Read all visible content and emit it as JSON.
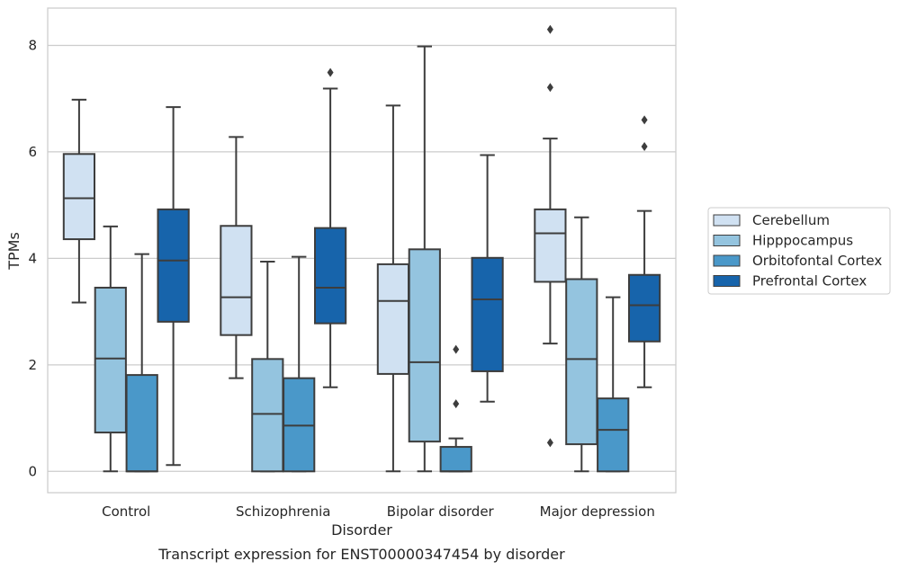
{
  "chart_data": {
    "type": "box",
    "xlabel": "Disorder",
    "ylabel": "TPMs",
    "caption": "Transcript expression for ENST00000347454 by disorder",
    "categories": [
      "Control",
      "Schizophrenia",
      "Bipolar disorder",
      "Major depression"
    ],
    "ylim": [
      -0.4,
      8.7
    ],
    "yticks": [
      0,
      2,
      4,
      6,
      8
    ],
    "grid": true,
    "legend_position": "right",
    "series": [
      {
        "name": "Cerebellum",
        "color": "#d0e1f2",
        "boxes": [
          {
            "min": 3.17,
            "q1": 4.36,
            "median": 5.13,
            "q3": 5.96,
            "max": 6.98,
            "outliers": []
          },
          {
            "min": 1.75,
            "q1": 2.56,
            "median": 3.27,
            "q3": 4.61,
            "max": 6.28,
            "outliers": []
          },
          {
            "min": 0.0,
            "q1": 1.83,
            "median": 3.2,
            "q3": 3.89,
            "max": 6.87,
            "outliers": []
          },
          {
            "min": 2.4,
            "q1": 3.56,
            "median": 4.47,
            "q3": 4.92,
            "max": 6.25,
            "outliers": [
              0.54,
              7.21,
              8.3
            ]
          }
        ]
      },
      {
        "name": "Hipppocampus",
        "color": "#94c4df",
        "boxes": [
          {
            "min": 0.0,
            "q1": 0.73,
            "median": 2.12,
            "q3": 3.45,
            "max": 4.6,
            "outliers": []
          },
          {
            "min": 0.0,
            "q1": 0.0,
            "median": 1.08,
            "q3": 2.11,
            "max": 3.94,
            "outliers": []
          },
          {
            "min": 0.0,
            "q1": 0.56,
            "median": 2.05,
            "q3": 4.17,
            "max": 7.98,
            "outliers": []
          },
          {
            "min": 0.0,
            "q1": 0.51,
            "median": 2.11,
            "q3": 3.61,
            "max": 4.77,
            "outliers": []
          }
        ]
      },
      {
        "name": "Orbitofontal Cortex",
        "color": "#4a98c9",
        "boxes": [
          {
            "min": 0.0,
            "q1": 0.0,
            "median": 0.0,
            "q3": 1.81,
            "max": 4.08,
            "outliers": []
          },
          {
            "min": 0.0,
            "q1": 0.0,
            "median": 0.86,
            "q3": 1.75,
            "max": 4.03,
            "outliers": []
          },
          {
            "min": 0.0,
            "q1": 0.0,
            "median": 0.0,
            "q3": 0.46,
            "max": 0.62,
            "outliers": [
              1.27,
              2.29
            ]
          },
          {
            "min": 0.0,
            "q1": 0.0,
            "median": 0.78,
            "q3": 1.37,
            "max": 3.27,
            "outliers": []
          }
        ]
      },
      {
        "name": "Prefrontal Cortex",
        "color": "#1764ab",
        "boxes": [
          {
            "min": 0.12,
            "q1": 2.81,
            "median": 3.96,
            "q3": 4.92,
            "max": 6.84,
            "outliers": []
          },
          {
            "min": 1.58,
            "q1": 2.78,
            "median": 3.45,
            "q3": 4.57,
            "max": 7.19,
            "outliers": [
              7.49
            ]
          },
          {
            "min": 1.31,
            "q1": 1.88,
            "median": 3.23,
            "q3": 4.01,
            "max": 5.94,
            "outliers": []
          },
          {
            "min": 1.58,
            "q1": 2.44,
            "median": 3.12,
            "q3": 3.69,
            "max": 4.89,
            "outliers": [
              6.1,
              6.6
            ]
          }
        ]
      }
    ]
  }
}
